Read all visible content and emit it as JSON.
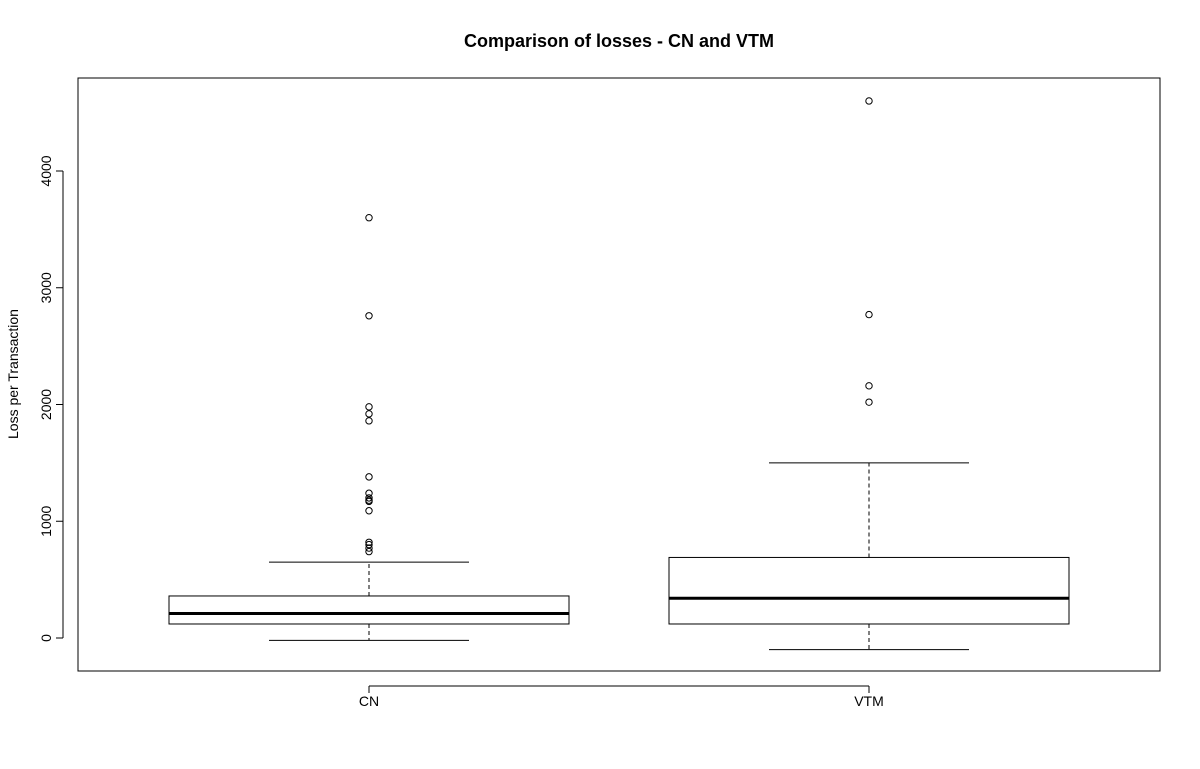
{
  "chart_data": {
    "type": "boxplot",
    "title": "Comparison of losses - CN and VTM",
    "xlabel": "",
    "ylabel": "Loss per Transaction",
    "ylim": [
      -300,
      4800
    ],
    "yticks": [
      0,
      1000,
      2000,
      3000,
      4000
    ],
    "categories": [
      "CN",
      "VTM"
    ],
    "series": [
      {
        "category": "CN",
        "whisker_low": -20,
        "q1": 120,
        "median": 210,
        "q3": 360,
        "whisker_high": 650,
        "outliers": [
          740,
          770,
          800,
          820,
          1090,
          1170,
          1180,
          1200,
          1240,
          1380,
          1860,
          1920,
          1980,
          2760,
          3600
        ]
      },
      {
        "category": "VTM",
        "whisker_low": -100,
        "q1": 120,
        "median": 340,
        "q3": 690,
        "whisker_high": 1500,
        "outliers": [
          2020,
          2160,
          2770,
          4600
        ]
      }
    ]
  }
}
